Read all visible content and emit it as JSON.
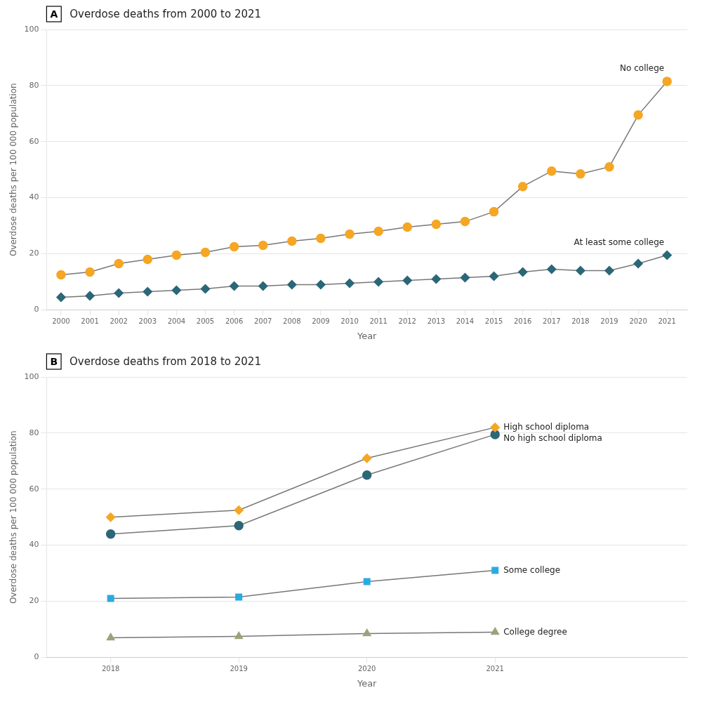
{
  "chart_data": [
    {
      "type": "line",
      "title": "Overdose deaths from 2000 to 2021",
      "annotations": [
        "A"
      ],
      "xlabel": "Year",
      "ylabel": "Overdose deaths per 100 000 population",
      "x": [
        2000,
        2001,
        2002,
        2003,
        2004,
        2005,
        2006,
        2007,
        2008,
        2009,
        2010,
        2011,
        2012,
        2013,
        2014,
        2015,
        2016,
        2017,
        2018,
        2019,
        2020,
        2021
      ],
      "xlim": [
        1999.5,
        2021.7
      ],
      "xticks": [
        2000,
        2001,
        2002,
        2003,
        2004,
        2005,
        2006,
        2007,
        2008,
        2009,
        2010,
        2011,
        2012,
        2013,
        2014,
        2015,
        2016,
        2017,
        2018,
        2019,
        2020,
        2021
      ],
      "ylim": [
        0,
        100
      ],
      "yticks": [
        0,
        20,
        40,
        60,
        80,
        100
      ],
      "grid": true,
      "color": "#777777",
      "series": [
        {
          "name": "No college",
          "color": "#F5A623",
          "marker": "circle",
          "values": [
            12.5,
            13.5,
            16.5,
            18.0,
            19.5,
            20.5,
            22.5,
            23.0,
            24.5,
            25.5,
            27.0,
            28.0,
            29.5,
            30.5,
            31.5,
            35.0,
            44.0,
            49.5,
            48.5,
            51.0,
            69.5,
            81.5
          ]
        },
        {
          "name": "At least some college",
          "color": "#2B6777",
          "marker": "diamond",
          "values": [
            4.5,
            5.0,
            6.0,
            6.5,
            7.0,
            7.5,
            8.5,
            8.5,
            9.0,
            9.0,
            9.5,
            10.0,
            10.5,
            11.0,
            11.5,
            12.0,
            13.5,
            14.5,
            14.0,
            14.0,
            16.5,
            19.5
          ]
        }
      ]
    },
    {
      "type": "line",
      "title": "Overdose deaths from 2018 to 2021",
      "annotations": [
        "B"
      ],
      "xlabel": "Year",
      "ylabel": "Overdose deaths per 100 000 population",
      "x": [
        2018,
        2019,
        2020,
        2021
      ],
      "xlim": [
        2017.5,
        2022.5
      ],
      "xticks": [
        2018,
        2019,
        2020,
        2021
      ],
      "ylim": [
        0,
        100
      ],
      "yticks": [
        0,
        20,
        40,
        60,
        80,
        100
      ],
      "grid": true,
      "color": "#777777",
      "series": [
        {
          "name": "High school diploma",
          "color": "#F5A623",
          "marker": "diamond",
          "values": [
            50.0,
            52.5,
            71.0,
            82.0
          ]
        },
        {
          "name": "No high school diploma",
          "color": "#2B6777",
          "marker": "circle",
          "values": [
            44.0,
            47.0,
            65.0,
            79.5
          ]
        },
        {
          "name": "Some college",
          "color": "#29ABE2",
          "marker": "square",
          "values": [
            21.0,
            21.5,
            27.0,
            31.0
          ]
        },
        {
          "name": "College degree",
          "color": "#A0A07A",
          "marker": "triangle",
          "values": [
            7.0,
            7.5,
            8.5,
            9.0
          ]
        }
      ]
    }
  ]
}
